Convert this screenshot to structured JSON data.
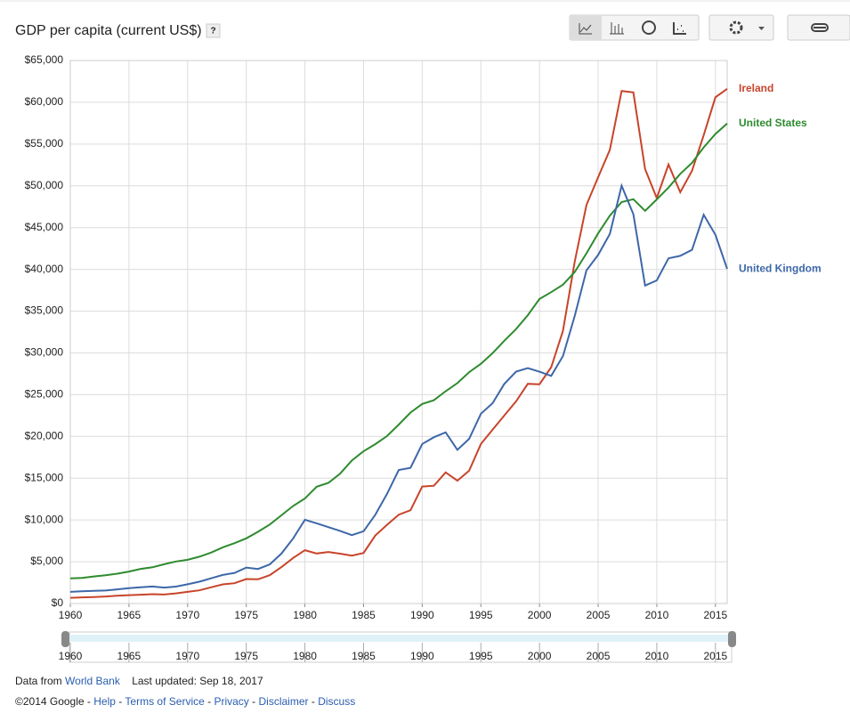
{
  "header": {
    "title": "GDP per capita (current US$)",
    "help": "?"
  },
  "chart_data": {
    "type": "line",
    "x": [
      1960,
      1961,
      1962,
      1963,
      1964,
      1965,
      1966,
      1967,
      1968,
      1969,
      1970,
      1971,
      1972,
      1973,
      1974,
      1975,
      1976,
      1977,
      1978,
      1979,
      1980,
      1981,
      1982,
      1983,
      1984,
      1985,
      1986,
      1987,
      1988,
      1989,
      1990,
      1991,
      1992,
      1993,
      1994,
      1995,
      1996,
      1997,
      1998,
      1999,
      2000,
      2001,
      2002,
      2003,
      2004,
      2005,
      2006,
      2007,
      2008,
      2009,
      2010,
      2011,
      2012,
      2013,
      2014,
      2015,
      2016
    ],
    "series": [
      {
        "name": "Ireland",
        "color": "#c8442a",
        "values": [
          686,
          734,
          783,
          840,
          933,
          1001,
          1050,
          1120,
          1075,
          1215,
          1400,
          1580,
          1941,
          2291,
          2430,
          2928,
          2894,
          3388,
          4355,
          5453,
          6380,
          5990,
          6173,
          5963,
          5730,
          6055,
          8128,
          9420,
          10630,
          11170,
          14000,
          14100,
          15700,
          14700,
          15900,
          19100,
          20800,
          22500,
          24200,
          26300,
          26240,
          28290,
          32640,
          40910,
          47710,
          51030,
          54310,
          61360,
          61190,
          52000,
          48540,
          52550,
          49230,
          51800,
          56060,
          60600,
          61610
        ]
      },
      {
        "name": "United States",
        "color": "#2e8b2e",
        "values": [
          3007,
          3067,
          3244,
          3375,
          3574,
          3828,
          4146,
          4336,
          4696,
          5032,
          5234,
          5609,
          6094,
          6726,
          7226,
          7801,
          8592,
          9453,
          10565,
          11674,
          12575,
          13976,
          14434,
          15544,
          17121,
          18237,
          19071,
          20039,
          21417,
          22857,
          23889,
          24342,
          25419,
          26387,
          27695,
          28691,
          29968,
          31459,
          32854,
          34516,
          36450,
          37274,
          38167,
          39677,
          41922,
          44308,
          46437,
          48062,
          48401,
          47002,
          48374,
          49794,
          51433,
          52750,
          54598,
          56207,
          57467
        ]
      },
      {
        "name": "United Kingdom",
        "color": "#3d67a8",
        "values": [
          1398,
          1472,
          1526,
          1561,
          1695,
          1839,
          1937,
          2034,
          1903,
          2025,
          2299,
          2606,
          3017,
          3420,
          3663,
          4300,
          4138,
          4682,
          5975,
          7805,
          10032,
          9599,
          9146,
          8692,
          8179,
          8652,
          10612,
          13119,
          15987,
          16239,
          19095,
          19901,
          20487,
          18389,
          19709,
          22721,
          23974,
          26286,
          27758,
          28171,
          27744,
          27247,
          29626,
          34416,
          39870,
          41733,
          44252,
          50013,
          46604,
          38067,
          38676,
          41321,
          41619,
          42335,
          46531,
          44132,
          40050
        ]
      }
    ],
    "xlim": [
      1960,
      2016
    ],
    "xticks": [
      1960,
      1965,
      1970,
      1975,
      1980,
      1985,
      1990,
      1995,
      2000,
      2005,
      2010,
      2015
    ],
    "ylim": [
      0,
      65000
    ],
    "yticks": [
      {
        "value": 0,
        "label": "$0"
      },
      {
        "value": 5000,
        "label": "$5,000"
      },
      {
        "value": 10000,
        "label": "$10,000"
      },
      {
        "value": 15000,
        "label": "$15,000"
      },
      {
        "value": 20000,
        "label": "$20,000"
      },
      {
        "value": 25000,
        "label": "$25,000"
      },
      {
        "value": 30000,
        "label": "$30,000"
      },
      {
        "value": 35000,
        "label": "$35,000"
      },
      {
        "value": 40000,
        "label": "$40,000"
      },
      {
        "value": 45000,
        "label": "$45,000"
      },
      {
        "value": 50000,
        "label": "$50,000"
      },
      {
        "value": 55000,
        "label": "$55,000"
      },
      {
        "value": 60000,
        "label": "$60,000"
      },
      {
        "value": 65000,
        "label": "$65,000"
      }
    ],
    "grid": true
  },
  "footer": {
    "source_prefix": "Data from",
    "source": "World Bank",
    "updated": "Last updated: Sep 18, 2017",
    "copyright": "©2014 Google",
    "links": [
      "Help",
      "Terms of Service",
      "Privacy",
      "Disclaimer",
      "Discuss"
    ],
    "separator": "-"
  }
}
